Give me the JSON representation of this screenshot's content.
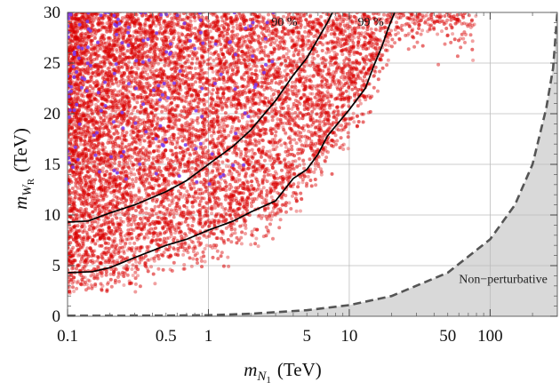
{
  "chart_data": {
    "type": "scatter",
    "x_scale": "log",
    "y_scale": "linear",
    "xlim": [
      0.1,
      300
    ],
    "ylim": [
      0,
      30
    ],
    "xlabel_main": "m",
    "xlabel_sub": "N",
    "xlabel_subsub": "1",
    "xlabel_unit": "(TeV)",
    "ylabel_main": "m",
    "ylabel_sub": "W",
    "ylabel_subsub": "R",
    "ylabel_unit": "(TeV)",
    "x_ticks": [
      {
        "value": 0.1,
        "label": "0.1"
      },
      {
        "value": 0.5,
        "label": "0.5"
      },
      {
        "value": 1,
        "label": "1"
      },
      {
        "value": 5,
        "label": "5"
      },
      {
        "value": 10,
        "label": "10"
      },
      {
        "value": 50,
        "label": "50"
      },
      {
        "value": 100,
        "label": "100"
      }
    ],
    "x_grid": [
      1,
      10,
      100
    ],
    "y_ticks": [
      0,
      5,
      10,
      15,
      20,
      25,
      30
    ],
    "grid": true,
    "colors": {
      "red_points": "#d90000",
      "blue_points": "#7a3cf2",
      "contour": "#000000",
      "boundary": "#555555",
      "shade": "#d9d9d9"
    },
    "contours": [
      {
        "label": "90 %",
        "points": [
          [
            0.1,
            9.3
          ],
          [
            0.14,
            9.4
          ],
          [
            0.2,
            10.2
          ],
          [
            0.3,
            11.0
          ],
          [
            0.5,
            12.3
          ],
          [
            0.7,
            13.4
          ],
          [
            1,
            15.0
          ],
          [
            1.5,
            16.8
          ],
          [
            2,
            18.4
          ],
          [
            3,
            21.3
          ],
          [
            4,
            23.8
          ],
          [
            5,
            25.5
          ],
          [
            6,
            27.4
          ],
          [
            7,
            29.0
          ],
          [
            7.6,
            30
          ]
        ]
      },
      {
        "label": "99 %",
        "points": [
          [
            0.1,
            4.3
          ],
          [
            0.15,
            4.4
          ],
          [
            0.2,
            4.8
          ],
          [
            0.3,
            5.8
          ],
          [
            0.5,
            7.0
          ],
          [
            0.7,
            7.6
          ],
          [
            1,
            8.5
          ],
          [
            1.5,
            9.4
          ],
          [
            2,
            10.3
          ],
          [
            3,
            11.4
          ],
          [
            4,
            13.6
          ],
          [
            5,
            14.5
          ],
          [
            6,
            16.0
          ],
          [
            7,
            17.8
          ],
          [
            10,
            20.4
          ],
          [
            13,
            22.5
          ],
          [
            15,
            24.8
          ],
          [
            17,
            26.6
          ],
          [
            19,
            28.5
          ],
          [
            21,
            30
          ]
        ]
      }
    ],
    "perturbativity_boundary": {
      "points": [
        [
          0.1,
          0.05
        ],
        [
          0.5,
          0.06
        ],
        [
          1,
          0.1
        ],
        [
          2,
          0.25
        ],
        [
          5,
          0.6
        ],
        [
          10,
          1.1
        ],
        [
          20,
          2.0
        ],
        [
          50,
          4.3
        ],
        [
          100,
          7.6
        ],
        [
          150,
          11.0
        ],
        [
          200,
          15.0
        ],
        [
          250,
          20.5
        ],
        [
          280,
          24.5
        ],
        [
          300,
          30
        ]
      ]
    },
    "scatter_density": {
      "red_count": 9000,
      "blue_count": 160,
      "region_note": "points above the 99% contour, concentrated toward small m_N1 and large m_WR"
    },
    "annotations": [
      {
        "text": "90 %",
        "x": 2.8,
        "y": 28.7
      },
      {
        "text": "99 %",
        "x": 11.5,
        "y": 28.7
      },
      {
        "text": "Non−perturbative",
        "x": 60,
        "y": 3.3
      }
    ]
  }
}
